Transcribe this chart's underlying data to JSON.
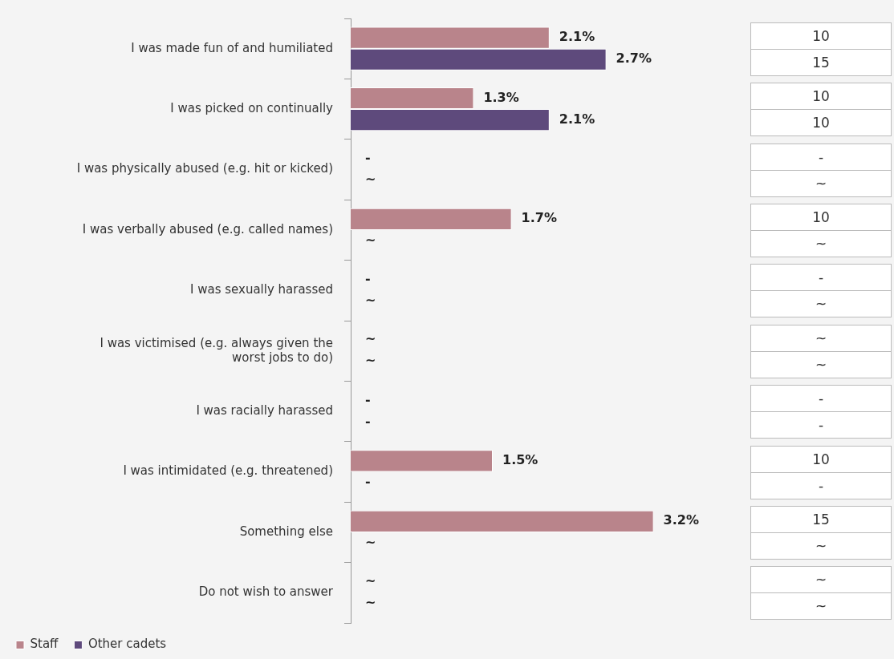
{
  "chart_data": [
    {
      "type": "bar",
      "orientation": "horizontal",
      "legend": "bottom left",
      "categories": [
        "I was made fun of and humiliated",
        "I was picked on continually",
        "I was physically abused (e.g. hit or kicked)",
        "I was verbally abused (e.g. called names)",
        "I was sexually harassed",
        "I was victimised (e.g. always given the worst jobs to do)",
        "I was racially harassed",
        "I was intimidated (e.g. threatened)",
        "Something else",
        "Do not wish to answer"
      ],
      "series": [
        {
          "name": "Staff",
          "color": "#b9848b",
          "values": [
            2.1,
            1.3,
            null,
            1.7,
            null,
            null,
            null,
            1.5,
            3.2,
            null
          ],
          "value_labels": [
            "2.1%",
            "1.3%",
            "-",
            "1.7%",
            "-",
            "~",
            "-",
            "1.5%",
            "3.2%",
            "~"
          ]
        },
        {
          "name": "Other cadets",
          "color": "#5e4a7c",
          "values": [
            2.7,
            2.1,
            null,
            null,
            null,
            null,
            null,
            null,
            null,
            null
          ],
          "value_labels": [
            "2.7%",
            "2.1%",
            "~",
            "~",
            "~",
            "~",
            "-",
            "-",
            "~",
            "~"
          ]
        }
      ]
    },
    {
      "type": "other",
      "annotations": [
        "10",
        "15",
        "10",
        "10",
        "-",
        "~",
        "10",
        "~",
        "-",
        "~",
        "~",
        "~",
        "-",
        "-",
        "10",
        "-",
        "15",
        "~",
        "~",
        "~"
      ]
    }
  ]
}
